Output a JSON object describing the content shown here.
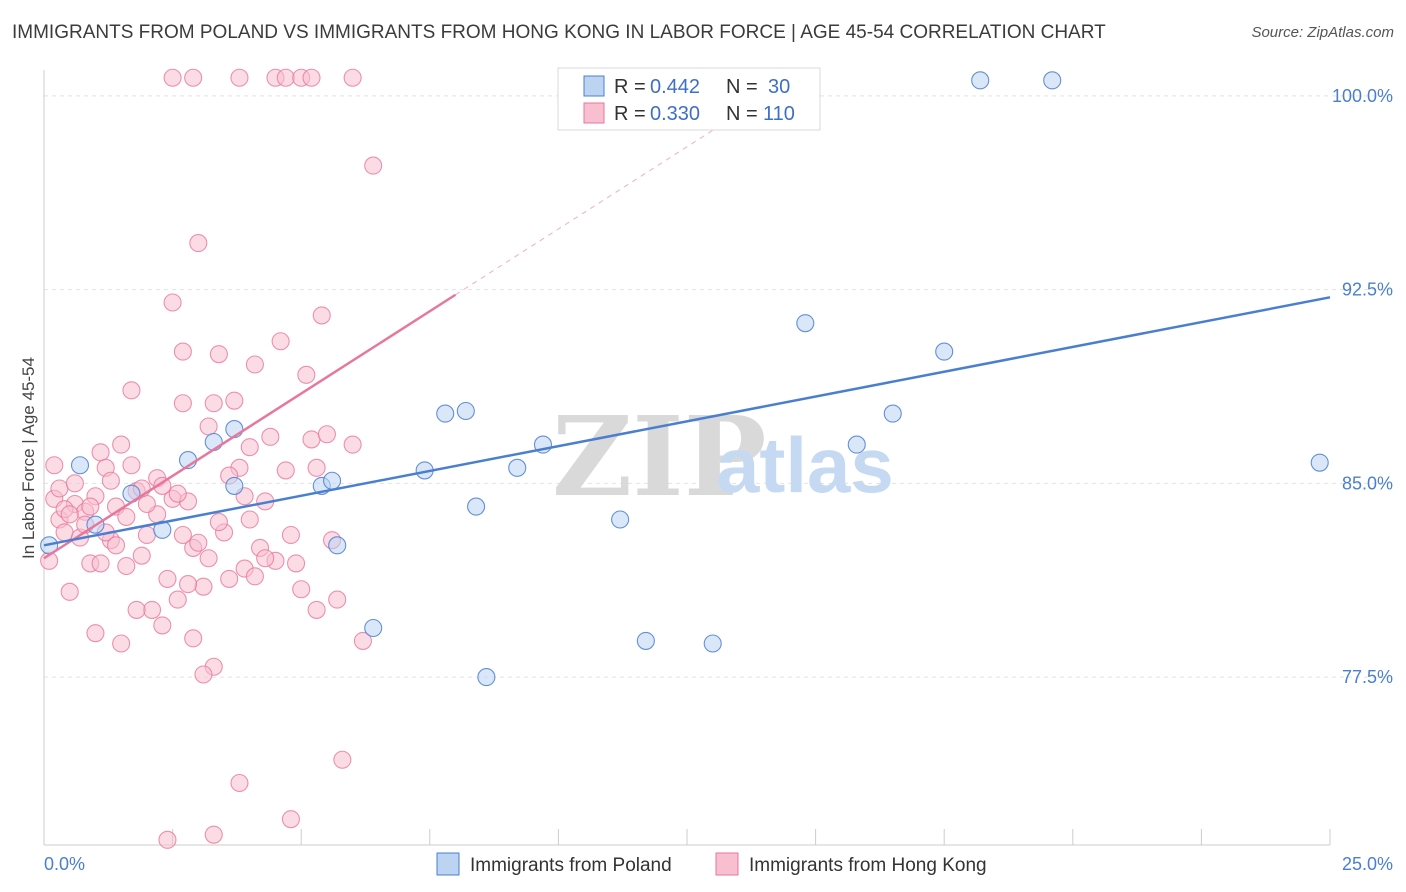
{
  "header": {
    "title": "IMMIGRANTS FROM POLAND VS IMMIGRANTS FROM HONG KONG IN LABOR FORCE | AGE 45-54 CORRELATION CHART",
    "source": "Source: ZipAtlas.com"
  },
  "watermark": {
    "zip": "ZIP",
    "atlas": "atlas"
  },
  "legend": {
    "rows": [
      {
        "r_label": "R =",
        "r_value": "0.442",
        "n_label": "N =",
        "n_value": "30"
      },
      {
        "r_label": "R =",
        "r_value": "0.330",
        "n_label": "N =",
        "n_value": "110"
      }
    ]
  },
  "colors": {
    "poland": "#4a7fd0",
    "poland_fill": "#bcd3f2",
    "hongkong": "#e8779d",
    "hongkong_fill": "#f7bfd0",
    "grid": "#e3e3e3",
    "axis_tick_text": "#4a7fd0"
  },
  "chart_data": {
    "type": "scatter",
    "title": "IMMIGRANTS FROM POLAND VS IMMIGRANTS FROM HONG KONG IN LABOR FORCE | AGE 45-54 CORRELATION CHART",
    "xlabel": "",
    "ylabel": "In Labor Force | Age 45-54",
    "xlim": [
      0,
      25
    ],
    "ylim": [
      71.0,
      101.0
    ],
    "x_tick_labels": [
      "0.0%",
      "25.0%"
    ],
    "y_ticks": [
      77.5,
      85.0,
      92.5,
      100.0
    ],
    "y_tick_labels": [
      "77.5%",
      "85.0%",
      "92.5%",
      "100.0%"
    ],
    "grid": true,
    "legend_position": "top-center",
    "series": [
      {
        "name": "Immigrants from Poland",
        "color": "#4a7fd0",
        "trend": {
          "x": [
            0.0,
            25.0
          ],
          "y": [
            82.6,
            92.2
          ],
          "style": "solid"
        },
        "points": [
          [
            0.1,
            82.6
          ],
          [
            1.7,
            84.6
          ],
          [
            2.8,
            85.9
          ],
          [
            3.7,
            84.9
          ],
          [
            2.3,
            83.2
          ],
          [
            3.3,
            86.6
          ],
          [
            3.7,
            87.1
          ],
          [
            5.4,
            84.9
          ],
          [
            5.6,
            85.1
          ],
          [
            5.7,
            82.6
          ],
          [
            6.4,
            79.4
          ],
          [
            7.4,
            85.5
          ],
          [
            7.8,
            87.7
          ],
          [
            8.2,
            87.8
          ],
          [
            8.4,
            84.1
          ],
          [
            8.6,
            77.5
          ],
          [
            9.2,
            85.6
          ],
          [
            9.7,
            86.5
          ],
          [
            11.2,
            83.6
          ],
          [
            11.7,
            78.9
          ],
          [
            13.0,
            78.8
          ],
          [
            14.8,
            91.2
          ],
          [
            15.8,
            86.5
          ],
          [
            16.5,
            87.7
          ],
          [
            17.5,
            90.1
          ],
          [
            18.2,
            100.6
          ],
          [
            19.6,
            100.6
          ],
          [
            24.8,
            85.8
          ],
          [
            1.0,
            83.4
          ],
          [
            0.7,
            85.7
          ]
        ]
      },
      {
        "name": "Immigrants from Hong Kong",
        "color": "#e8779d",
        "trend": {
          "x": [
            0.0,
            8.0
          ],
          "y": [
            82.1,
            92.3
          ],
          "style": "solid",
          "dashed_extension": {
            "x": [
              8.0,
              13.5
            ],
            "y": [
              92.3,
              99.3
            ]
          }
        },
        "points": [
          [
            0.1,
            82.0
          ],
          [
            0.2,
            84.4
          ],
          [
            0.3,
            83.6
          ],
          [
            0.3,
            84.8
          ],
          [
            0.4,
            83.1
          ],
          [
            0.5,
            80.8
          ],
          [
            0.6,
            84.2
          ],
          [
            0.7,
            82.9
          ],
          [
            0.8,
            83.9
          ],
          [
            0.9,
            81.9
          ],
          [
            1.0,
            84.5
          ],
          [
            1.0,
            79.2
          ],
          [
            1.1,
            86.2
          ],
          [
            1.2,
            85.6
          ],
          [
            1.3,
            82.8
          ],
          [
            1.4,
            84.1
          ],
          [
            1.5,
            86.5
          ],
          [
            1.5,
            78.8
          ],
          [
            1.6,
            83.7
          ],
          [
            1.7,
            88.6
          ],
          [
            1.8,
            84.7
          ],
          [
            1.9,
            82.2
          ],
          [
            2.0,
            83.0
          ],
          [
            2.1,
            80.1
          ],
          [
            2.2,
            85.2
          ],
          [
            2.3,
            79.5
          ],
          [
            2.4,
            81.3
          ],
          [
            2.5,
            84.4
          ],
          [
            2.5,
            92.0
          ],
          [
            2.6,
            80.5
          ],
          [
            2.7,
            90.1
          ],
          [
            2.7,
            88.1
          ],
          [
            2.8,
            84.3
          ],
          [
            2.9,
            82.5
          ],
          [
            3.0,
            94.3
          ],
          [
            3.1,
            81.0
          ],
          [
            3.2,
            87.2
          ],
          [
            3.2,
            82.1
          ],
          [
            3.3,
            88.1
          ],
          [
            3.3,
            77.9
          ],
          [
            3.4,
            90.0
          ],
          [
            3.5,
            83.1
          ],
          [
            3.6,
            81.3
          ],
          [
            3.7,
            88.2
          ],
          [
            3.8,
            85.6
          ],
          [
            3.9,
            81.7
          ],
          [
            4.0,
            86.4
          ],
          [
            4.0,
            83.6
          ],
          [
            4.1,
            89.6
          ],
          [
            4.2,
            82.5
          ],
          [
            4.3,
            84.3
          ],
          [
            4.4,
            86.8
          ],
          [
            4.5,
            82.0
          ],
          [
            4.6,
            90.5
          ],
          [
            4.7,
            85.5
          ],
          [
            4.8,
            83.0
          ],
          [
            4.8,
            72.0
          ],
          [
            4.9,
            81.9
          ],
          [
            5.0,
            80.9
          ],
          [
            5.1,
            89.2
          ],
          [
            5.2,
            86.7
          ],
          [
            5.3,
            85.6
          ],
          [
            5.3,
            80.1
          ],
          [
            5.4,
            91.5
          ],
          [
            5.5,
            86.9
          ],
          [
            5.6,
            82.8
          ],
          [
            5.7,
            80.5
          ],
          [
            5.8,
            74.3
          ],
          [
            6.0,
            86.5
          ],
          [
            6.2,
            78.9
          ],
          [
            6.4,
            97.3
          ],
          [
            0.4,
            84.0
          ],
          [
            0.6,
            85.0
          ],
          [
            0.8,
            83.4
          ],
          [
            1.2,
            83.1
          ],
          [
            1.4,
            82.6
          ],
          [
            1.6,
            81.8
          ],
          [
            1.8,
            80.1
          ],
          [
            2.2,
            83.8
          ],
          [
            2.6,
            84.6
          ],
          [
            2.9,
            79.0
          ],
          [
            3.1,
            77.6
          ],
          [
            3.6,
            85.3
          ],
          [
            4.1,
            81.4
          ],
          [
            3.8,
            73.4
          ],
          [
            3.3,
            71.4
          ],
          [
            2.4,
            71.2
          ],
          [
            2.5,
            100.7
          ],
          [
            2.9,
            100.7
          ],
          [
            3.8,
            100.7
          ],
          [
            4.5,
            100.7
          ],
          [
            4.7,
            100.7
          ],
          [
            5.0,
            100.7
          ],
          [
            5.2,
            100.7
          ],
          [
            6.0,
            100.7
          ],
          [
            0.2,
            85.7
          ],
          [
            0.9,
            84.1
          ],
          [
            1.3,
            85.1
          ],
          [
            1.7,
            85.7
          ],
          [
            2.0,
            84.2
          ],
          [
            2.3,
            84.9
          ],
          [
            2.7,
            83.0
          ],
          [
            3.0,
            82.7
          ],
          [
            3.4,
            83.5
          ],
          [
            3.9,
            84.5
          ],
          [
            4.3,
            82.1
          ],
          [
            0.5,
            83.8
          ],
          [
            1.1,
            81.9
          ],
          [
            1.9,
            84.8
          ],
          [
            2.8,
            81.1
          ]
        ]
      }
    ]
  },
  "bottom_legend": {
    "items": [
      {
        "label": "Immigrants from Poland"
      },
      {
        "label": "Immigrants from Hong Kong"
      }
    ]
  }
}
